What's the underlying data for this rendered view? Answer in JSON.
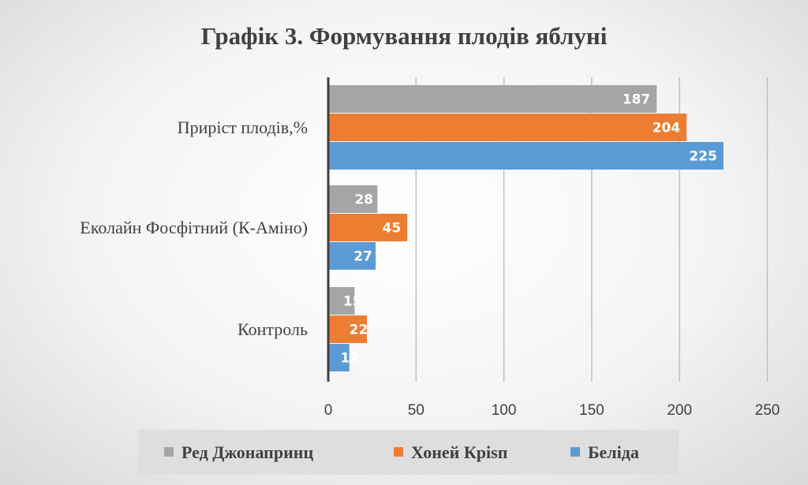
{
  "chart_data": {
    "type": "bar",
    "orientation": "horizontal",
    "title": "Графік 3. Формування плодів яблуні",
    "categories": [
      "Приріст плодів,%",
      "Еколайн Фосфітний (К-Аміно)",
      "Контроль"
    ],
    "series": [
      {
        "name": "Ред Джонапринц",
        "color": "#a5a5a5",
        "values": [
          187,
          28,
          15
        ]
      },
      {
        "name": "Хоней Кріsп",
        "color": "#ed7d31",
        "values": [
          204,
          45,
          22
        ]
      },
      {
        "name": "Беліда",
        "color": "#5b9bd5",
        "values": [
          225,
          27,
          12
        ]
      }
    ],
    "xlim": [
      0,
      250
    ],
    "xticks": [
      "0",
      "50",
      "100",
      "150",
      "200",
      "250"
    ],
    "grid": true,
    "legend_position": "bottom",
    "data_labels": true
  }
}
